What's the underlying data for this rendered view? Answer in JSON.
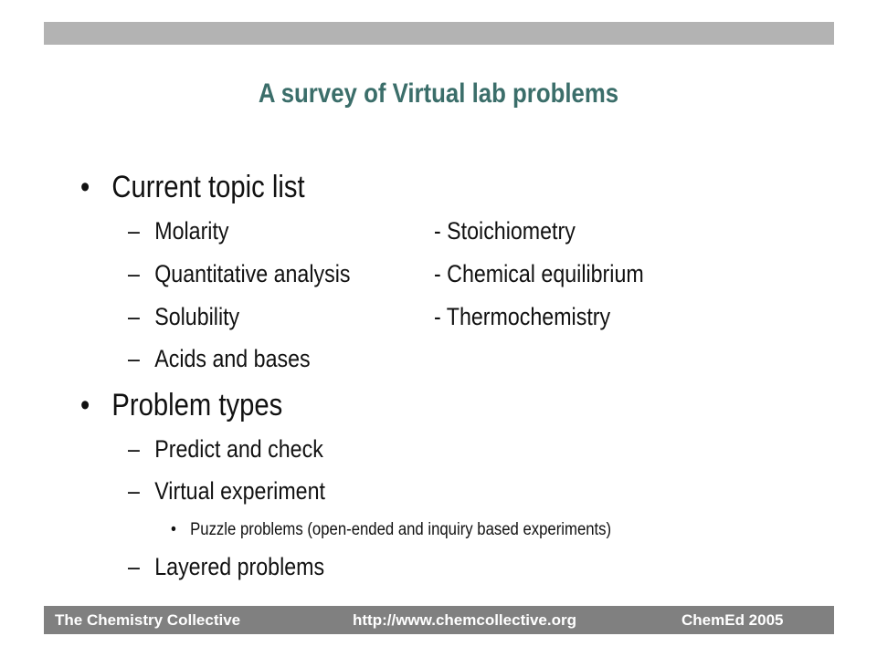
{
  "title": "A survey of Virtual lab problems",
  "sections": [
    {
      "heading": "Current topic list",
      "left_items": [
        "Molarity",
        "Quantitative analysis",
        "Solubility",
        "Acids and bases"
      ],
      "right_items": [
        "- Stoichiometry",
        "- Chemical equilibrium",
        "- Thermochemistry"
      ]
    },
    {
      "heading": "Problem types",
      "items": [
        "Predict and check",
        "Virtual experiment",
        "Layered problems"
      ],
      "sub_items": [
        "Puzzle problems (open-ended and inquiry based experiments)"
      ]
    }
  ],
  "bullets": {
    "level1": "•",
    "level2": "–",
    "level3": "•"
  },
  "footer": {
    "left": "The Chemistry Collective",
    "center": "http://www.chemcollective.org",
    "right": "ChemEd 2005"
  },
  "colors": {
    "title": "#3b6e6a",
    "top_bar": "#b3b3b3",
    "footer_bar": "#808080",
    "footer_text": "#ffffff"
  }
}
